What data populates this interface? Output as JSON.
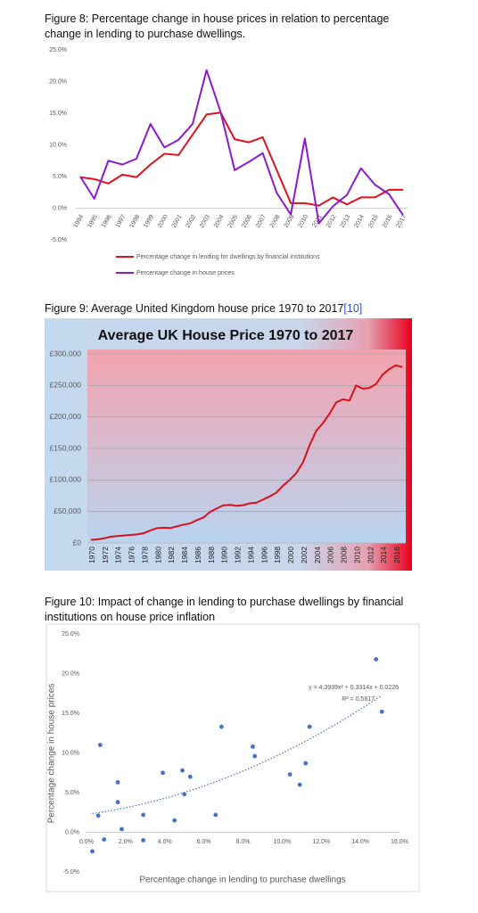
{
  "chart_data": [
    {
      "type": "line",
      "caption": "Figure 8: Percentage change in house prices in relation to percentage change in lending to purchase dwellings.",
      "categories": [
        "1994",
        "1995",
        "1996",
        "1997",
        "1998",
        "1999",
        "2000",
        "2001",
        "2002",
        "2003",
        "2004",
        "2005",
        "2006",
        "2007",
        "2008",
        "2009",
        "2010",
        "2011",
        "2012",
        "2013",
        "2014",
        "2015",
        "2016",
        "2017"
      ],
      "series": [
        {
          "name": "Percentage change in lending for dwellings by financial institutions",
          "color": "#e0101c",
          "values": [
            4.9,
            4.6,
            3.9,
            5.3,
            4.9,
            6.9,
            8.6,
            8.4,
            11.6,
            14.8,
            15.1,
            10.9,
            10.4,
            11.2,
            6.0,
            0.8,
            0.8,
            0.4,
            1.7,
            0.6,
            1.7,
            1.7,
            2.9,
            2.9
          ]
        },
        {
          "name": "Percentage change in house prices",
          "color": "#8a1ad0",
          "values": [
            5.0,
            1.5,
            7.5,
            6.9,
            7.8,
            13.3,
            9.6,
            10.8,
            13.3,
            21.8,
            15.2,
            6.0,
            7.3,
            8.7,
            2.4,
            -1.0,
            11.0,
            -2.4,
            0.3,
            2.1,
            6.3,
            3.7,
            2.2,
            -1.1
          ]
        }
      ],
      "ylim": [
        -5,
        25
      ],
      "yticks": [
        {
          "value": -5,
          "label": "-5.0%"
        },
        {
          "value": 0,
          "label": "0.0%"
        },
        {
          "value": 5,
          "label": "5.0%"
        },
        {
          "value": 10,
          "label": "10.0%"
        },
        {
          "value": 15,
          "label": "15.0%"
        },
        {
          "value": 20,
          "label": "20.0%"
        },
        {
          "value": 25,
          "label": "25.0%"
        }
      ],
      "grid": false
    },
    {
      "type": "line",
      "caption": "Figure 9: Average United Kingdom house price 1970 to 2017",
      "caption_ref": "[10]",
      "title": "Average UK House Price 1970 to 2017",
      "categories": [
        "1970",
        null,
        "1972",
        null,
        "1974",
        null,
        "1976",
        null,
        "1978",
        null,
        "1980",
        null,
        "1982",
        null,
        "1984",
        null,
        "1986",
        null,
        "1988",
        null,
        "1990",
        null,
        "1992",
        null,
        "1994",
        null,
        "1996",
        null,
        "1998",
        null,
        "2000",
        null,
        "2002",
        null,
        "2004",
        null,
        "2006",
        null,
        "2008",
        null,
        "2010",
        null,
        "2012",
        null,
        "2014",
        null,
        "2016",
        null
      ],
      "series": [
        {
          "name": null,
          "color": "#d8101c",
          "values": [
            4975,
            5632,
            7374,
            9942,
            10990,
            11787,
            12704,
            13650,
            15594,
            19925,
            23596,
            24188,
            23644,
            26469,
            29106,
            31103,
            36276,
            40391,
            49355,
            54846,
            59785,
            60500,
            59000,
            60000,
            63000,
            64000,
            69000,
            74000,
            80000,
            91000,
            100000,
            111000,
            128000,
            155000,
            178000,
            190000,
            205000,
            223000,
            228000,
            226000,
            250000,
            245000,
            246000,
            252000,
            267000,
            276000,
            282000,
            279000
          ]
        }
      ],
      "ylim": [
        0,
        300000
      ],
      "yticks": [
        {
          "value": 0,
          "label": "£0"
        },
        {
          "value": 50000,
          "label": "£50,000"
        },
        {
          "value": 100000,
          "label": "£100,000"
        },
        {
          "value": 150000,
          "label": "£150,000"
        },
        {
          "value": 200000,
          "label": "£200,000"
        },
        {
          "value": 250000,
          "label": "£250,000"
        },
        {
          "value": 300000,
          "label": "£300,000"
        }
      ],
      "grid": true
    },
    {
      "type": "scatter",
      "caption": "Figure 10: Impact of change in lending to purchase dwellings by financial institutions on house price inflation",
      "x_label": "Percentage change in lending to purchase dwellings",
      "y_label": "Percentage change in house prices",
      "series": [
        {
          "name": null,
          "color": "#4472c4",
          "x": [
            0.3,
            0.6,
            0.7,
            0.9,
            1.6,
            1.6,
            1.8,
            2.9,
            2.9,
            3.9,
            4.5,
            4.9,
            5.0,
            5.3,
            6.6,
            6.9,
            8.5,
            8.6,
            10.4,
            10.9,
            11.2,
            11.4,
            14.8,
            15.1
          ],
          "values": [
            -2.4,
            2.1,
            11.0,
            -0.9,
            6.3,
            3.8,
            0.4,
            -1.0,
            2.2,
            7.5,
            1.5,
            7.8,
            4.8,
            7.0,
            2.2,
            13.3,
            10.8,
            9.6,
            7.3,
            6.0,
            8.7,
            13.3,
            21.8,
            15.2
          ]
        }
      ],
      "trendline": {
        "coefficients": [
          4.3939,
          0.3314,
          0.0226
        ],
        "equation": "y = 4.3939x² + 0.3314x + 0.0226",
        "r2": "R² = 0.5817"
      },
      "xlim": [
        0,
        16
      ],
      "xticks": [
        {
          "value": 0,
          "label": "0.0%"
        },
        {
          "value": 2,
          "label": "2.0%"
        },
        {
          "value": 4,
          "label": "4.0%"
        },
        {
          "value": 6,
          "label": "6.0%"
        },
        {
          "value": 8,
          "label": "8.0%"
        },
        {
          "value": 10,
          "label": "10.0%"
        },
        {
          "value": 12,
          "label": "12.0%"
        },
        {
          "value": 14,
          "label": "14.0%"
        },
        {
          "value": 16,
          "label": "16.0%"
        }
      ],
      "ylim": [
        -5,
        25
      ],
      "yticks": [
        {
          "value": -5,
          "label": "-5.0%"
        },
        {
          "value": 0,
          "label": "0.0%"
        },
        {
          "value": 5,
          "label": "5.0%"
        },
        {
          "value": 10,
          "label": "10.0%"
        },
        {
          "value": 15,
          "label": "15.0%"
        },
        {
          "value": 20,
          "label": "20.0%"
        },
        {
          "value": 25,
          "label": "25.0%"
        }
      ],
      "grid": false
    }
  ]
}
